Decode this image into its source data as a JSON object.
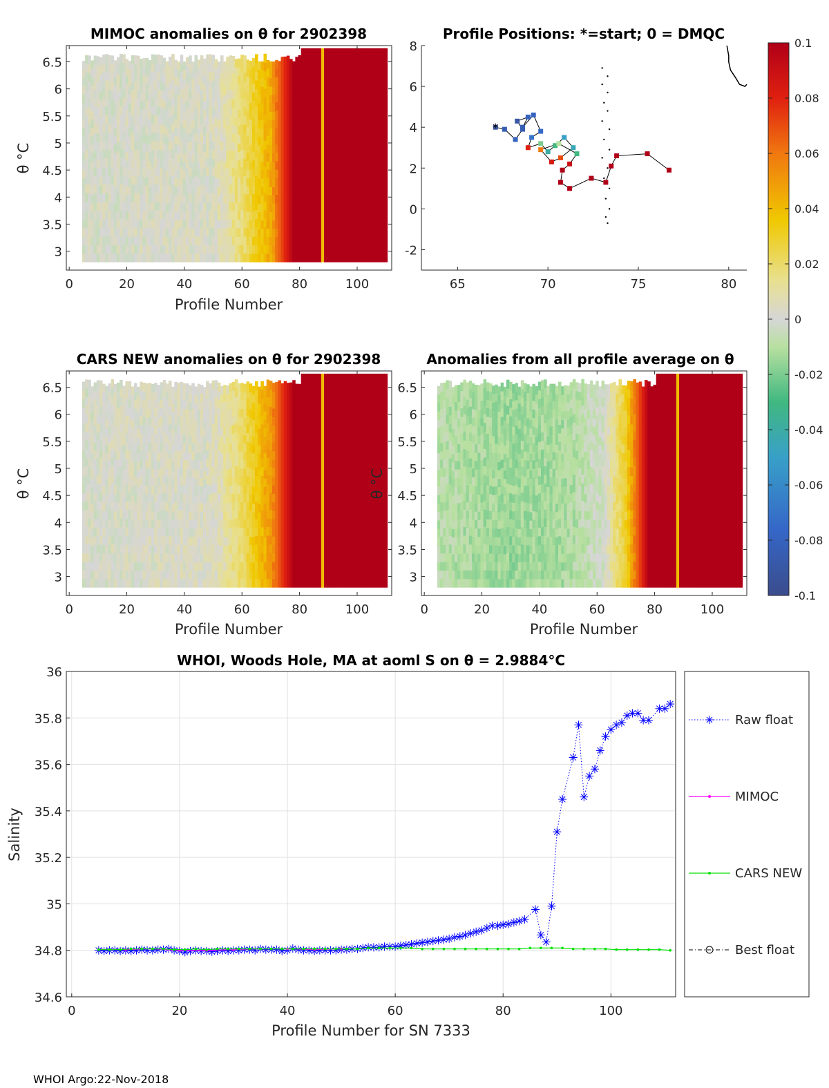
{
  "footer": "WHOI Argo:22-Nov-2018",
  "colorbar": {
    "range": [
      -0.1,
      0.1
    ],
    "ticks": [
      "0.1",
      "0.08",
      "0.06",
      "0.04",
      "0.02",
      "0",
      "-0.02",
      "-0.04",
      "-0.06",
      "-0.08",
      "-0.1"
    ]
  },
  "chart_data": [
    {
      "id": "mimoc",
      "type": "heatmap",
      "title": "MIMOC anomalies on θ  for 2902398",
      "xlabel": "Profile Number",
      "ylabel": "θ °C",
      "xlim": [
        -1,
        112
      ],
      "ylim": [
        2.65,
        6.8
      ],
      "xticks": [
        0,
        20,
        40,
        60,
        80,
        100
      ],
      "yticks": [
        3,
        3.5,
        4,
        4.5,
        5,
        5.5,
        6,
        6.5
      ],
      "ytick_labels": [
        "3",
        "3.5",
        "4",
        "4.5",
        "5",
        "5.5",
        "6",
        "6.5"
      ],
      "x_start": 5,
      "x_end": 110,
      "profile_pattern": {
        "x": [
          0,
          50,
          60,
          70,
          78,
          88,
          110
        ],
        "anom": [
          0.0,
          0.002,
          0.018,
          0.045,
          0.1,
          0.1,
          0.1
        ]
      },
      "nan_line": 88
    },
    {
      "id": "positions",
      "type": "scatter",
      "title": "Profile Positions: *=start; 0 = DMQC",
      "xlim": [
        63,
        81
      ],
      "ylim": [
        -3,
        8
      ],
      "xticks": [
        65,
        70,
        75,
        80
      ],
      "yticks": [
        -2,
        0,
        2,
        4,
        6,
        8
      ],
      "track": [
        [
          67.1,
          4.0
        ],
        [
          67.6,
          3.9
        ],
        [
          68.2,
          3.4
        ],
        [
          68.6,
          3.9
        ],
        [
          68.3,
          4.3
        ],
        [
          68.9,
          4.5
        ],
        [
          68.6,
          4.0
        ],
        [
          69.2,
          4.6
        ],
        [
          69.6,
          3.8
        ],
        [
          69.1,
          3.5
        ],
        [
          68.9,
          3.0
        ],
        [
          69.6,
          3.2
        ],
        [
          70.0,
          2.8
        ],
        [
          70.4,
          3.1
        ],
        [
          70.9,
          3.5
        ],
        [
          71.4,
          3.0
        ],
        [
          70.7,
          2.5
        ],
        [
          70.2,
          2.3
        ],
        [
          69.6,
          2.9
        ],
        [
          70.6,
          3.2
        ],
        [
          71.6,
          2.7
        ],
        [
          71.2,
          2.2
        ],
        [
          70.8,
          1.9
        ],
        [
          70.7,
          1.3
        ],
        [
          71.2,
          1.0
        ],
        [
          72.4,
          1.5
        ],
        [
          73.2,
          1.3
        ],
        [
          73.5,
          2.1
        ],
        [
          73.8,
          2.6
        ],
        [
          75.5,
          2.7
        ],
        [
          76.7,
          1.9
        ]
      ],
      "track_anom": [
        -0.09,
        -0.085,
        -0.08,
        -0.085,
        -0.09,
        -0.08,
        -0.085,
        -0.08,
        -0.075,
        -0.07,
        0.08,
        -0.02,
        -0.04,
        -0.03,
        -0.05,
        -0.045,
        0.07,
        0.085,
        0.06,
        -0.01,
        -0.03,
        0.09,
        0.1,
        0.1,
        0.1,
        0.1,
        0.1,
        0.1,
        0.1,
        0.1,
        0.1
      ],
      "coast": [
        [
          73.0,
          6.9
        ],
        [
          73.3,
          6.5
        ],
        [
          73.0,
          6.1
        ],
        [
          73.3,
          5.7
        ],
        [
          73.1,
          5.2
        ],
        [
          73.3,
          4.8
        ],
        [
          73.0,
          4.3
        ],
        [
          73.4,
          3.9
        ],
        [
          73.1,
          3.4
        ],
        [
          73.4,
          2.9
        ],
        [
          73.0,
          2.5
        ],
        [
          73.3,
          2.0
        ],
        [
          73.1,
          1.5
        ],
        [
          73.4,
          1.0
        ],
        [
          73.2,
          0.5
        ],
        [
          73.4,
          0.0
        ],
        [
          73.2,
          -0.4
        ],
        [
          73.3,
          -0.7
        ]
      ],
      "coast_ne": [
        [
          79.9,
          8.0
        ],
        [
          80.0,
          7.5
        ],
        [
          80.0,
          7.2
        ],
        [
          80.1,
          6.8
        ],
        [
          80.4,
          6.4
        ],
        [
          80.6,
          6.1
        ],
        [
          80.9,
          6.0
        ],
        [
          81.0,
          6.1
        ]
      ]
    },
    {
      "id": "cars",
      "type": "heatmap",
      "title": "CARS NEW anomalies on θ for 2902398",
      "xlabel": "Profile Number",
      "ylabel": "θ °C",
      "xlim": [
        -1,
        112
      ],
      "ylim": [
        2.65,
        6.8
      ],
      "xticks": [
        0,
        20,
        40,
        60,
        80,
        100
      ],
      "yticks": [
        3,
        3.5,
        4,
        4.5,
        5,
        5.5,
        6,
        6.5
      ],
      "ytick_labels": [
        "3",
        "3.5",
        "4",
        "4.5",
        "5",
        "5.5",
        "6",
        "6.5"
      ],
      "x_start": 5,
      "x_end": 110,
      "profile_pattern": {
        "x": [
          0,
          50,
          60,
          70,
          78,
          88,
          110
        ],
        "anom": [
          0.0,
          0.003,
          0.02,
          0.05,
          0.1,
          0.1,
          0.1
        ]
      },
      "nan_line": 88
    },
    {
      "id": "avg",
      "type": "heatmap",
      "title": "Anomalies from all profile average on θ",
      "xlabel": "Profile Number",
      "ylabel": "θ °C",
      "xlim": [
        -1,
        112
      ],
      "ylim": [
        2.65,
        6.8
      ],
      "xticks": [
        0,
        20,
        40,
        60,
        80,
        100
      ],
      "yticks": [
        3,
        3.5,
        4,
        4.5,
        5,
        5.5,
        6,
        6.5
      ],
      "ytick_labels": [
        "3",
        "3.5",
        "4",
        "4.5",
        "5",
        "5.5",
        "6",
        "6.5"
      ],
      "x_start": 5,
      "x_end": 110,
      "profile_pattern": {
        "x": [
          0,
          30,
          50,
          62,
          70,
          78,
          88,
          110
        ],
        "anom": [
          -0.008,
          -0.015,
          -0.012,
          -0.002,
          0.03,
          0.1,
          0.1,
          0.1
        ]
      },
      "nan_line": 88
    },
    {
      "id": "salinity",
      "type": "line",
      "title": "WHOI, Woods Hole, MA at aoml S on θ = 2.9884°C",
      "xlabel": "Profile Number for SN 7333",
      "ylabel": "Salinity",
      "xlim": [
        -1,
        112
      ],
      "ylim": [
        34.6,
        36
      ],
      "xticks": [
        0,
        20,
        40,
        60,
        80,
        100
      ],
      "yticks": [
        34.6,
        34.8,
        35,
        35.2,
        35.4,
        35.6,
        35.8,
        36
      ],
      "ytick_labels": [
        "34.6",
        "34.8",
        "35",
        "35.2",
        "35.4",
        "35.6",
        "35.8",
        "36"
      ],
      "series": [
        {
          "name": "Raw float",
          "x": [
            5,
            6,
            7,
            8,
            9,
            10,
            11,
            12,
            13,
            14,
            15,
            16,
            17,
            18,
            19,
            20,
            21,
            22,
            23,
            24,
            25,
            26,
            27,
            28,
            29,
            30,
            31,
            32,
            33,
            34,
            35,
            36,
            37,
            38,
            39,
            40,
            41,
            42,
            43,
            44,
            45,
            46,
            47,
            48,
            49,
            50,
            51,
            52,
            53,
            54,
            55,
            56,
            57,
            58,
            59,
            60,
            61,
            62,
            63,
            64,
            65,
            66,
            67,
            68,
            69,
            70,
            71,
            72,
            73,
            74,
            75,
            76,
            77,
            78,
            79,
            80,
            81,
            82,
            83,
            84,
            86,
            87,
            88,
            89,
            90,
            91,
            93,
            94,
            95,
            96,
            97,
            98,
            99,
            100,
            101,
            102,
            103,
            104,
            105,
            106,
            107,
            109,
            110,
            111
          ],
          "values": [
            34.8,
            34.797,
            34.8,
            34.8,
            34.797,
            34.8,
            34.797,
            34.8,
            34.803,
            34.8,
            34.8,
            34.803,
            34.803,
            34.806,
            34.8,
            34.797,
            34.792,
            34.797,
            34.8,
            34.797,
            34.797,
            34.794,
            34.797,
            34.8,
            34.797,
            34.8,
            34.8,
            34.803,
            34.803,
            34.8,
            34.806,
            34.803,
            34.803,
            34.803,
            34.797,
            34.8,
            34.808,
            34.803,
            34.8,
            34.8,
            34.797,
            34.8,
            34.8,
            34.8,
            34.8,
            34.803,
            34.803,
            34.806,
            34.806,
            34.81,
            34.813,
            34.813,
            34.813,
            34.816,
            34.816,
            34.816,
            34.82,
            34.823,
            34.826,
            34.83,
            34.833,
            34.836,
            34.84,
            34.843,
            34.846,
            34.85,
            34.856,
            34.86,
            34.866,
            34.873,
            34.88,
            34.886,
            34.896,
            34.906,
            34.906,
            34.91,
            34.913,
            34.92,
            34.926,
            34.933,
            34.976,
            34.866,
            34.836,
            34.99,
            35.31,
            35.45,
            35.63,
            35.77,
            35.46,
            35.55,
            35.58,
            35.66,
            35.72,
            35.75,
            35.77,
            35.78,
            35.81,
            35.82,
            35.82,
            35.79,
            35.79,
            35.84,
            35.84,
            35.86
          ],
          "color": "#0000ff"
        },
        {
          "name": "MIMOC",
          "x": [
            5,
            10,
            15,
            20,
            25,
            30,
            35,
            40,
            45,
            50
          ],
          "values": [
            34.803,
            34.803,
            34.806,
            34.8,
            34.8,
            34.803,
            34.806,
            34.806,
            34.803,
            34.806
          ],
          "color": "#ff00ff"
        },
        {
          "name": "CARS NEW",
          "x": [
            5,
            7,
            9,
            11,
            13,
            15,
            17,
            19,
            21,
            23,
            25,
            27,
            29,
            31,
            33,
            35,
            37,
            39,
            41,
            43,
            45,
            47,
            49,
            51,
            53,
            55,
            57,
            59,
            61,
            63,
            65,
            67,
            69,
            71,
            73,
            75,
            77,
            79,
            81,
            83,
            85,
            87,
            89,
            91,
            93,
            95,
            97,
            99,
            101,
            103,
            105,
            107,
            109,
            111
          ],
          "values": [
            34.803,
            34.803,
            34.803,
            34.806,
            34.806,
            34.806,
            34.806,
            34.803,
            34.803,
            34.806,
            34.803,
            34.806,
            34.806,
            34.806,
            34.806,
            34.806,
            34.806,
            34.806,
            34.806,
            34.806,
            34.806,
            34.806,
            34.806,
            34.806,
            34.806,
            34.81,
            34.81,
            34.81,
            34.81,
            34.81,
            34.806,
            34.806,
            34.806,
            34.806,
            34.806,
            34.806,
            34.806,
            34.806,
            34.806,
            34.806,
            34.81,
            34.81,
            34.81,
            34.81,
            34.806,
            34.806,
            34.806,
            34.806,
            34.803,
            34.803,
            34.803,
            34.803,
            34.803,
            34.8
          ],
          "color": "#00e000"
        },
        {
          "name": "Best float",
          "x": [],
          "values": [],
          "color": "#000000"
        }
      ]
    }
  ]
}
